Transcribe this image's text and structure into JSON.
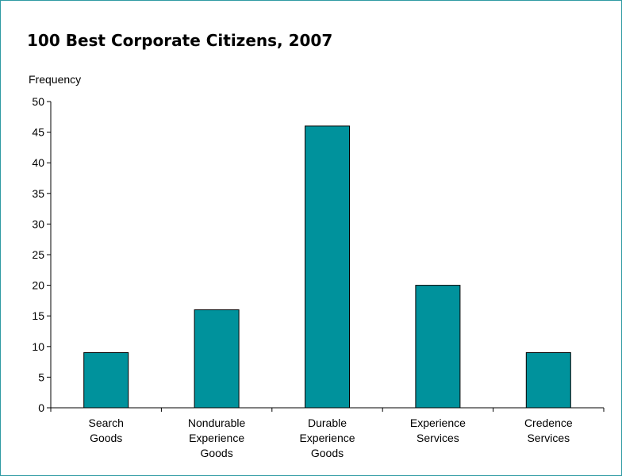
{
  "chart_data": {
    "type": "bar",
    "title": "100 Best Corporate Citizens, 2007",
    "xlabel": "",
    "ylabel": "Frequency",
    "categories": [
      [
        "Search",
        "Goods"
      ],
      [
        "Nondurable",
        "Experience",
        "Goods"
      ],
      [
        "Durable",
        "Experience",
        "Goods"
      ],
      [
        "Experience",
        "Services"
      ],
      [
        "Credence",
        "Services"
      ]
    ],
    "values": [
      9,
      16,
      46,
      20,
      9
    ],
    "ylim": [
      0,
      50
    ],
    "yticks": [
      "0",
      "5",
      "10",
      "15",
      "20",
      "25",
      "30",
      "35",
      "40",
      "45",
      "50"
    ],
    "grid": false,
    "legend": "none",
    "bar_color": "#00929c"
  }
}
